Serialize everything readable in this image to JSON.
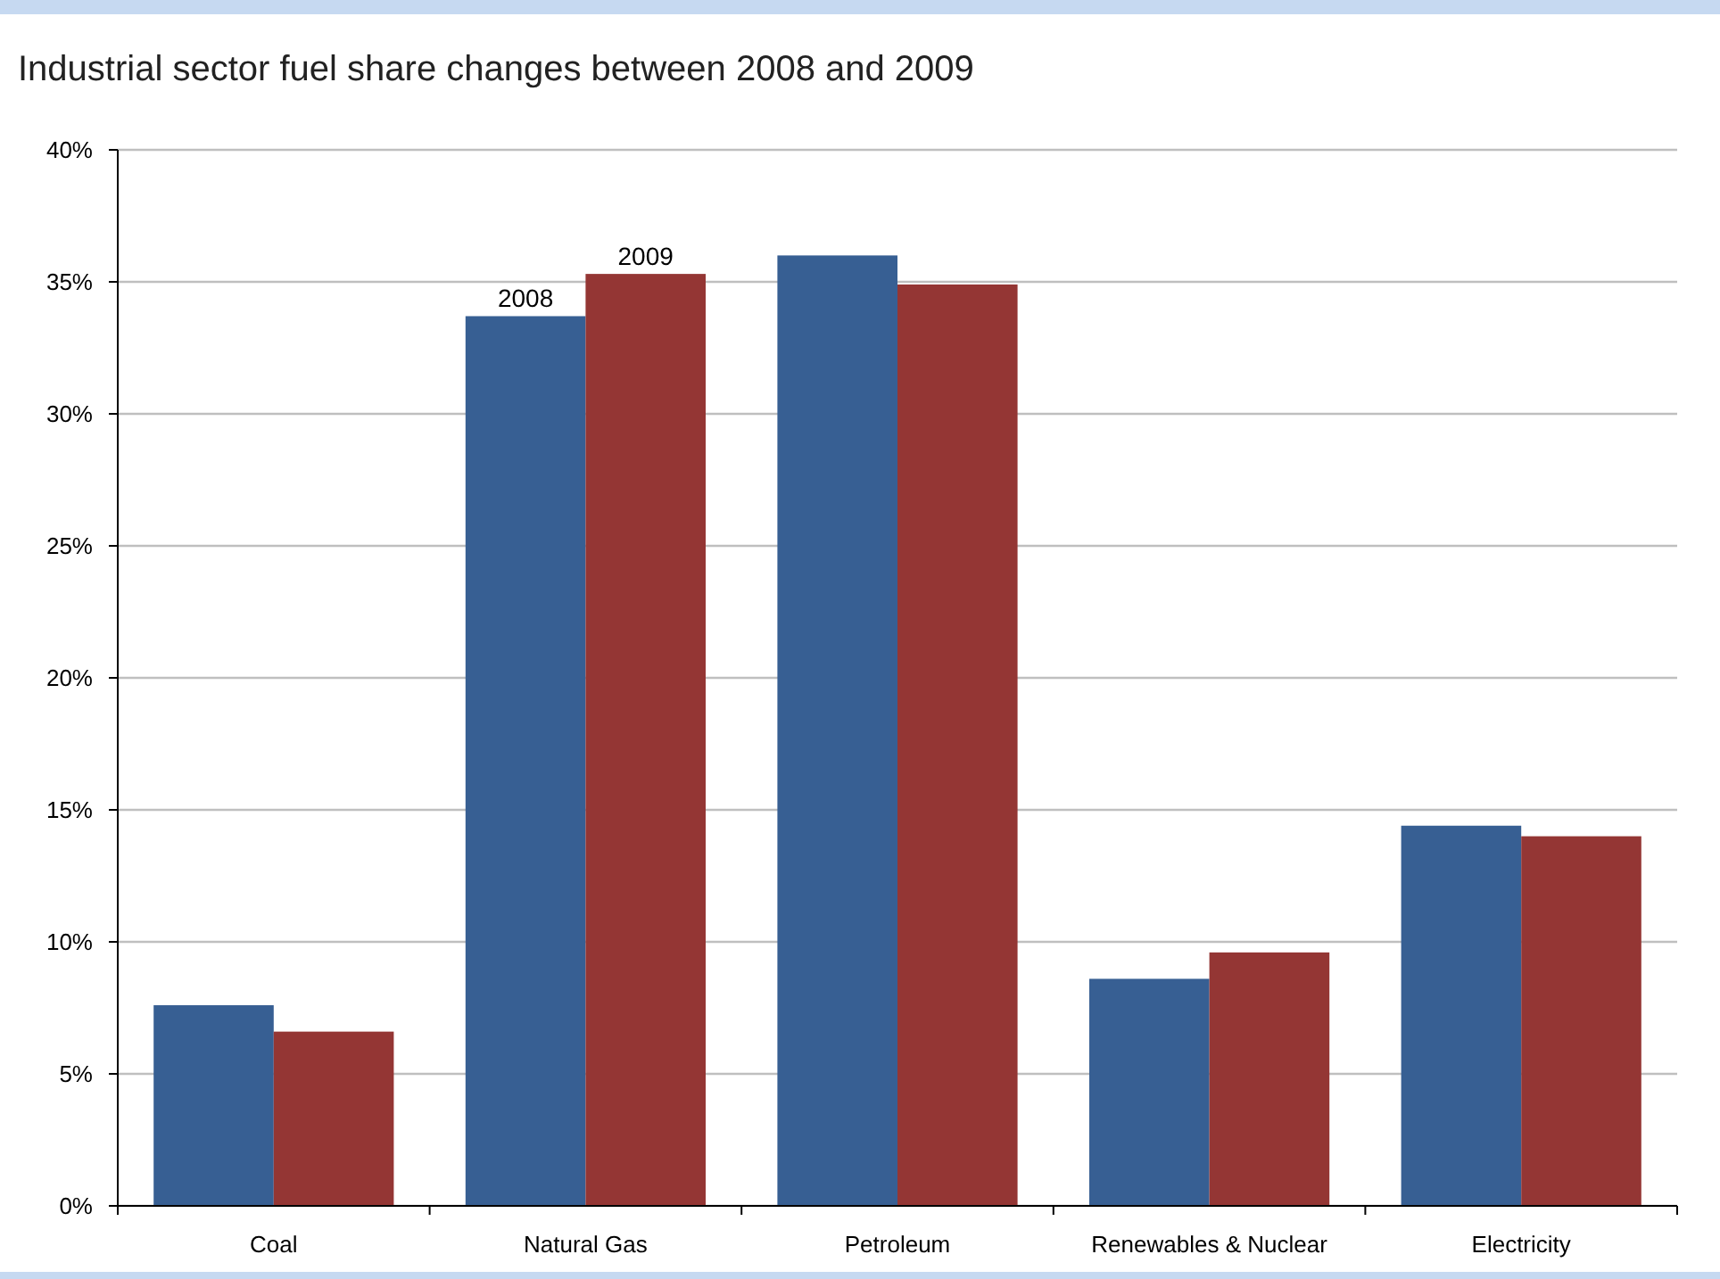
{
  "chart_data": {
    "type": "bar",
    "title": "Industrial sector fuel share changes between 2008 and 2009",
    "categories": [
      "Coal",
      "Natural Gas",
      "Petroleum",
      "Renewables & Nuclear",
      "Electricity"
    ],
    "series": [
      {
        "name": "2008",
        "color": "#375f93",
        "values": [
          7.6,
          33.7,
          36.0,
          8.6,
          14.4
        ]
      },
      {
        "name": "2009",
        "color": "#943634",
        "values": [
          6.6,
          35.3,
          34.9,
          9.6,
          14.0
        ]
      }
    ],
    "ylim": [
      0,
      40
    ],
    "yticks": [
      {
        "value": 0,
        "label": "0%"
      },
      {
        "value": 5,
        "label": "5%"
      },
      {
        "value": 10,
        "label": "10%"
      },
      {
        "value": 15,
        "label": "15%"
      },
      {
        "value": 20,
        "label": "20%"
      },
      {
        "value": 25,
        "label": "25%"
      },
      {
        "value": 30,
        "label": "30%"
      },
      {
        "value": 35,
        "label": "35%"
      },
      {
        "value": 40,
        "label": "40%"
      }
    ],
    "grid": "y",
    "legend": false
  }
}
